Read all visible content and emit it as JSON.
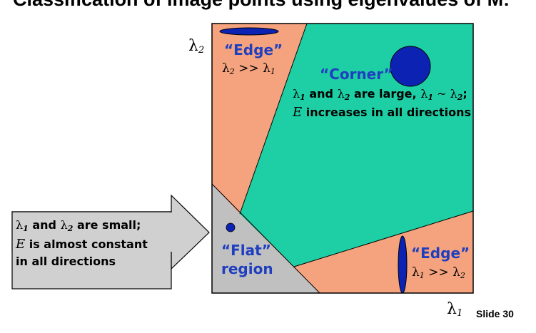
{
  "slide": {
    "title": "Classification of image points using eigenvalues of M:",
    "slide_number": "Slide 30"
  },
  "axes": {
    "y_label": "λ",
    "y_label_sub": "2",
    "x_label": "λ",
    "x_label_sub": "1"
  },
  "regions": {
    "edge_top": {
      "label": "“Edge”",
      "cond_a": "λ",
      "cond_a_sub": "2",
      "cond_op": " >> ",
      "cond_b": "λ",
      "cond_b_sub": "1"
    },
    "corner": {
      "label": "“Corner”",
      "line1_a": "λ",
      "line1_a_sub": "1",
      "line1_and": " and ",
      "line1_b": "λ",
      "line1_b_sub": "2",
      "line1_rest": " are large,  ",
      "line1_c": "λ",
      "line1_c_sub": "1",
      "line1_tilde": " ~ ",
      "line1_d": "λ",
      "line1_d_sub": "2",
      "line1_end": ";",
      "line2_e": "E",
      "line2_rest": " increases in all directions"
    },
    "flat": {
      "label_line1": "“Flat”",
      "label_line2": "region"
    },
    "edge_bottom": {
      "label": "“Edge”",
      "cond_a": "λ",
      "cond_a_sub": "1",
      "cond_op": " >> ",
      "cond_b": "λ",
      "cond_b_sub": "2"
    }
  },
  "callout": {
    "line1_a": "λ",
    "line1_a_sub": "1",
    "line1_and": " and ",
    "line1_b": "λ",
    "line1_b_sub": "2",
    "line1_rest": " are small;",
    "line2_e": "E",
    "line2_rest": " is almost constant",
    "line3": "in all directions"
  },
  "colors": {
    "edge_fill": "#f4a37e",
    "corner_fill": "#1ecfa5",
    "flat_fill": "#c0c0c0",
    "ellipse_fill": "#0c22b3",
    "label_blue": "#1f3fbf"
  }
}
